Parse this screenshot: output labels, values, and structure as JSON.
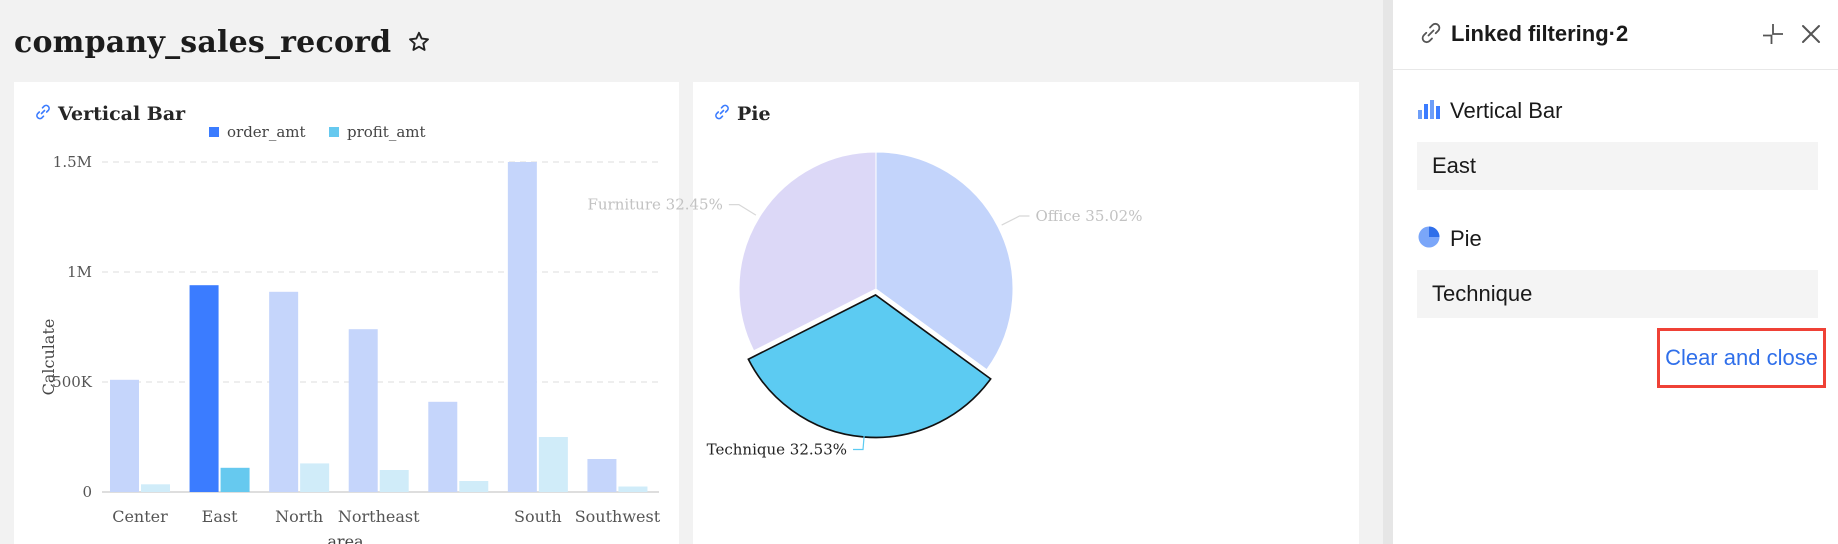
{
  "page": {
    "title": "company_sales_record",
    "favorite_icon": "star-icon"
  },
  "bar_card": {
    "title": "Vertical Bar",
    "link_icon": "link-icon"
  },
  "pie_card": {
    "title": "Pie",
    "link_icon": "link-icon"
  },
  "colors": {
    "order_amt": "#3b7cff",
    "profit_amt": "#66c9ef",
    "order_amt_faded": "#c5d5fb",
    "profit_amt_faded": "#d0ecf9",
    "pie_office": "#c3d4fb",
    "pie_furniture": "#dcd8f7",
    "pie_technique": "#5ccbf2",
    "highlight_border": "#ef4136",
    "link_blue": "#2f6fea"
  },
  "side_panel": {
    "title": "Linked filtering·2",
    "header_icon": "link-icon",
    "collapse_icon": "collapse-icon",
    "close_icon": "close-icon",
    "filters": [
      {
        "chart": "Vertical Bar",
        "icon": "bar-chart-icon",
        "value": "East"
      },
      {
        "chart": "Pie",
        "icon": "pie-chart-icon",
        "value": "Technique"
      }
    ],
    "clear_label": "Clear and close"
  },
  "chart_data": [
    {
      "type": "bar",
      "title": "Vertical Bar",
      "xlabel": "area",
      "ylabel": "Calculate",
      "categories": [
        "Center",
        "East",
        "North",
        "Northeast",
        "",
        "South",
        "Southwest"
      ],
      "series": [
        {
          "name": "order_amt",
          "values": [
            510000,
            940000,
            910000,
            740000,
            410000,
            1500000,
            150000
          ]
        },
        {
          "name": "profit_amt",
          "values": [
            35000,
            110000,
            130000,
            100000,
            50000,
            250000,
            25000
          ]
        }
      ],
      "highlighted_category": "East",
      "ylim": [
        0,
        1500000
      ],
      "yticks": [
        0,
        500000,
        1000000,
        1500000
      ],
      "ytick_labels": [
        "0",
        "500K",
        "1M",
        "1.5M"
      ],
      "grid": true,
      "legend": "top-center"
    },
    {
      "type": "pie",
      "title": "Pie",
      "slices": [
        {
          "label": "Office",
          "value": 35.02,
          "display": "Office 35.02%"
        },
        {
          "label": "Technique",
          "value": 32.53,
          "display": "Technique 32.53%"
        },
        {
          "label": "Furniture",
          "value": 32.45,
          "display": "Furniture 32.45%"
        }
      ],
      "highlighted_slice": "Technique"
    }
  ]
}
